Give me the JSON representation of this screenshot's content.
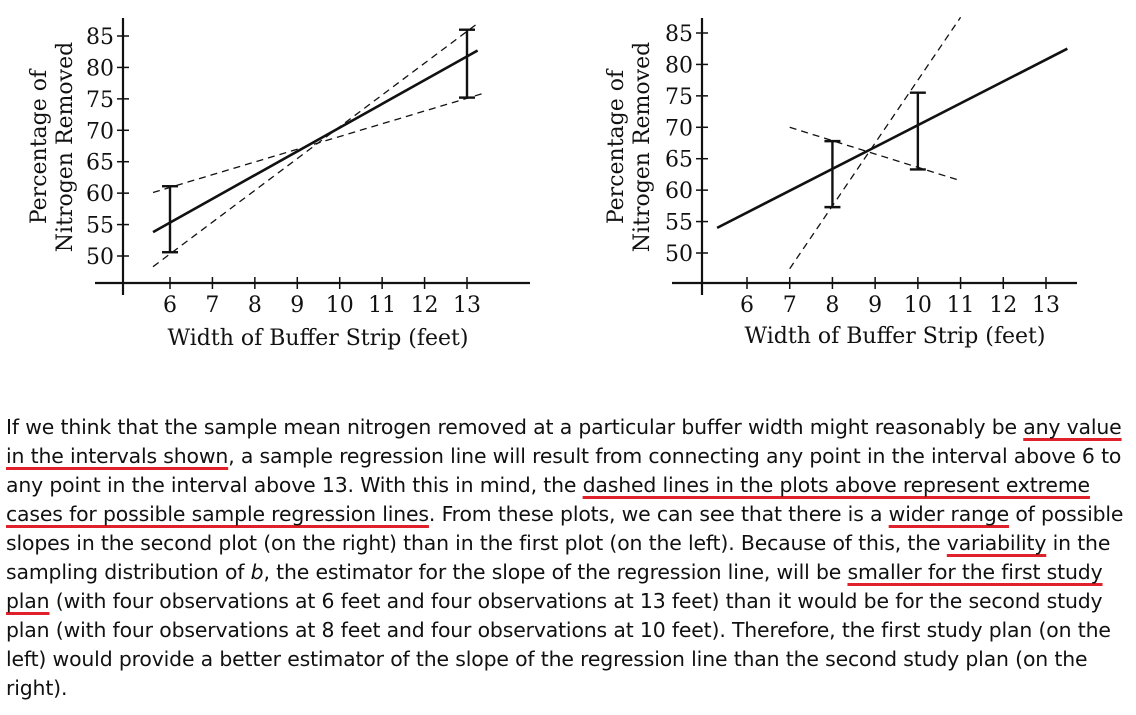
{
  "chart_data": [
    {
      "type": "line",
      "xlabel": "Width of Buffer Strip (feet)",
      "ylabel_line1": "Percentage of",
      "ylabel_line2": "Nitrogen Removed",
      "x_ticks": [
        6,
        7,
        8,
        9,
        10,
        11,
        12,
        13
      ],
      "y_ticks": [
        50,
        55,
        60,
        65,
        70,
        75,
        80,
        85
      ],
      "xlim": [
        5.5,
        13.5
      ],
      "ylim": [
        50,
        85
      ],
      "grid": false,
      "regression_line": {
        "x": [
          5.6,
          13.25
        ],
        "y": [
          53.8,
          82.7
        ]
      },
      "dashed_lines": [
        {
          "x": [
            5.6,
            13.25
          ],
          "y": [
            48.3,
            87.0
          ]
        },
        {
          "x": [
            5.6,
            13.4
          ],
          "y": [
            60.1,
            75.9
          ]
        }
      ],
      "intervals": [
        {
          "x": 6,
          "low": 50.6,
          "high": 61.1
        },
        {
          "x": 13,
          "low": 75.2,
          "high": 86.0
        }
      ]
    },
    {
      "type": "line",
      "xlabel": "Width of Buffer Strip (feet)",
      "ylabel_line1": "Percentage of",
      "ylabel_line2": "Nitrogen Removed",
      "x_ticks": [
        6,
        7,
        8,
        9,
        10,
        11,
        12,
        13
      ],
      "y_ticks": [
        50,
        55,
        60,
        65,
        70,
        75,
        80,
        85
      ],
      "xlim": [
        5.3,
        13.7
      ],
      "ylim": [
        50,
        85
      ],
      "grid": false,
      "regression_line": {
        "x": [
          5.3,
          13.5
        ],
        "y": [
          54.0,
          82.5
        ]
      },
      "dashed_lines": [
        {
          "x": [
            7.0,
            11.0
          ],
          "y": [
            47.5,
            87.5
          ]
        },
        {
          "x": [
            7.0,
            11.0
          ],
          "y": [
            70.0,
            61.5
          ]
        }
      ],
      "intervals": [
        {
          "x": 8,
          "low": 57.3,
          "high": 67.8
        },
        {
          "x": 10,
          "low": 63.3,
          "high": 75.5
        }
      ]
    }
  ],
  "text": {
    "p01": "If we think that the sample mean nitrogen removed at a particular buffer width might reasonably be ",
    "u1": "any value in the intervals shown",
    "p02": ", a sample regression line will result from connecting any point in the interval above 6 to any point in the interval above 13. With this in mind, the ",
    "u2": "dashed lines in the plots above represent extreme cases for possible sample regression lines",
    "p03": ". From these plots, we can see that there is a ",
    "u3": "wider range",
    "p04": " of possible slopes in the second plot (on the right) than in the first plot (on the left). Because of this, the ",
    "u4": "variability",
    "p05": " in the sampling distribution of ",
    "b": "b",
    "p06": ", the estimator for the slope of the regression line, will be ",
    "u5": "smaller for the first study plan",
    "p07": " (with four observations at 6 feet and four observations at 13 feet) than it would be for the second study plan (with four observations at 8 feet and four observations at 10 feet). Therefore, the first study plan (on the left) would provide a better estimator of the slope of the regression line than the second study plan (on the right)."
  }
}
